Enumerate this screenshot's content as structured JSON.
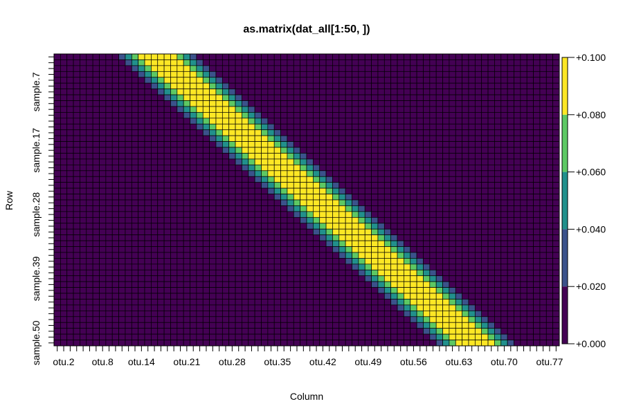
{
  "chart_data": {
    "type": "heatmap",
    "title": "as.matrix(dat_all[1:50, ])",
    "xlabel": "Column",
    "ylabel": "Row",
    "n_rows": 50,
    "n_cols": 78,
    "x_tick_labels": [
      "otu.2",
      "otu.8",
      "otu.14",
      "otu.21",
      "otu.28",
      "otu.35",
      "otu.42",
      "otu.49",
      "otu.56",
      "otu.63",
      "otu.70",
      "otu.77"
    ],
    "x_tick_columns": [
      2,
      8,
      14,
      21,
      28,
      35,
      42,
      49,
      56,
      63,
      70,
      77
    ],
    "y_tick_labels": [
      "sample.7",
      "sample.17",
      "sample.28",
      "sample.39",
      "sample.50"
    ],
    "y_tick_rows": [
      7,
      17,
      28,
      39,
      50
    ],
    "band": {
      "row1_center_col": 16.5,
      "col_shift_per_row": 1,
      "levels_by_distance": [
        0.09,
        0.09,
        0.09,
        0.07,
        0.05,
        0.03,
        0.01
      ]
    },
    "color_scale": {
      "breaks": [
        0.0,
        0.02,
        0.04,
        0.06,
        0.08,
        0.1
      ],
      "colors": [
        "#440154",
        "#3b528b",
        "#21908c",
        "#5dc863",
        "#fde725"
      ],
      "labels": [
        "+0.000",
        "+0.020",
        "+0.040",
        "+0.060",
        "+0.080",
        "+0.100"
      ]
    }
  }
}
